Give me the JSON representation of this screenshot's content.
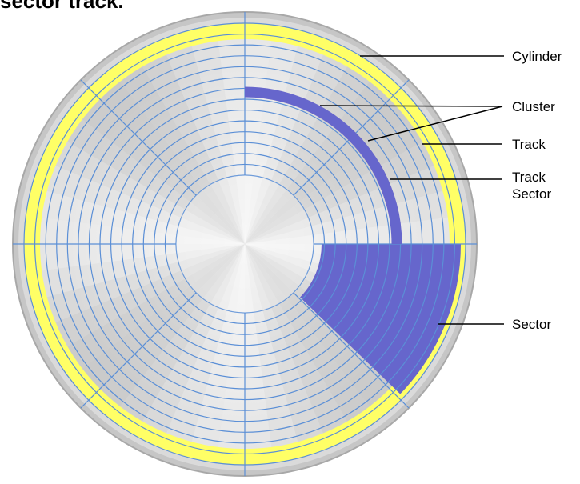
{
  "header": {
    "title": "sector track."
  },
  "labels": {
    "cylinder": "Cylinder",
    "cluster": "Cluster",
    "track": "Track",
    "track_sector_line1": "Track",
    "track_sector_line2": "Sector",
    "sector": "Sector"
  },
  "colors": {
    "background": "#ffffff",
    "rim": "#bdbdbd",
    "disk_light": "#f4f4f4",
    "disk_shade": "#b9b9b9",
    "track_lines": "#5b8fd6",
    "cylinder_ring": "#ffff66",
    "highlight": "#6666cc",
    "leader_lines": "#000000"
  },
  "diagram": {
    "track_count": 14,
    "sector_divisions": 8
  }
}
